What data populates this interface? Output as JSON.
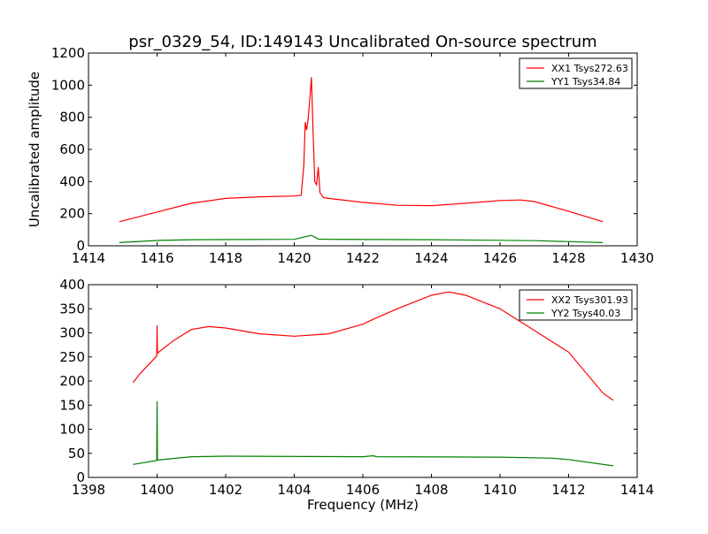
{
  "chart_data": [
    {
      "type": "line",
      "title": "psr_0329_54, ID:149143 Uncalibrated On-source spectrum",
      "xlabel": "",
      "ylabel": "Uncalibrated amplitude",
      "xlim": [
        1414,
        1430
      ],
      "ylim": [
        0,
        1200
      ],
      "xticks": [
        1414,
        1416,
        1418,
        1420,
        1422,
        1424,
        1426,
        1428,
        1430
      ],
      "yticks": [
        0,
        200,
        400,
        600,
        800,
        1000,
        1200
      ],
      "legend": "top-right",
      "series": [
        {
          "name": "XX1 Tsys272.63",
          "color": "#ff0000",
          "x": [
            1414.9,
            1415,
            1416,
            1417,
            1418,
            1419,
            1420,
            1420.2,
            1420.28,
            1420.32,
            1420.36,
            1420.4,
            1420.45,
            1420.5,
            1420.55,
            1420.6,
            1420.65,
            1420.7,
            1420.75,
            1420.85,
            1421,
            1422,
            1423,
            1424,
            1425,
            1426,
            1426.6,
            1427,
            1428,
            1429
          ],
          "y": [
            150,
            155,
            210,
            265,
            295,
            305,
            310,
            315,
            500,
            770,
            720,
            780,
            900,
            1050,
            700,
            400,
            380,
            490,
            330,
            300,
            295,
            270,
            252,
            250,
            265,
            282,
            285,
            275,
            215,
            150
          ]
        },
        {
          "name": "YY1 Tsys34.84",
          "color": "#008000",
          "x": [
            1414.9,
            1416,
            1417,
            1420,
            1420.3,
            1420.5,
            1420.7,
            1421,
            1424,
            1427,
            1429
          ],
          "y": [
            20,
            33,
            38,
            40,
            55,
            65,
            42,
            40,
            38,
            32,
            20
          ]
        }
      ]
    },
    {
      "type": "line",
      "title": "",
      "xlabel": "Frequency (MHz)",
      "ylabel": "",
      "xlim": [
        1398,
        1414
      ],
      "ylim": [
        0,
        400
      ],
      "xticks": [
        1398,
        1400,
        1402,
        1404,
        1406,
        1408,
        1410,
        1412,
        1414
      ],
      "yticks": [
        0,
        50,
        100,
        150,
        200,
        250,
        300,
        350,
        400
      ],
      "legend": "top-right",
      "series": [
        {
          "name": "XX2 Tsys301.93",
          "color": "#ff0000",
          "x": [
            1399.3,
            1399.5,
            1399.99,
            1400,
            1400.01,
            1400.5,
            1401,
            1401.5,
            1402,
            1403,
            1404,
            1405,
            1406,
            1406.3,
            1407,
            1408,
            1408.5,
            1409,
            1410,
            1411,
            1412,
            1413,
            1413.3
          ],
          "y": [
            197,
            215,
            252,
            315,
            258,
            285,
            307,
            313,
            310,
            298,
            293,
            298,
            318,
            328,
            350,
            378,
            385,
            378,
            350,
            305,
            260,
            175,
            160
          ]
        },
        {
          "name": "YY2 Tsys40.03",
          "color": "#008000",
          "x": [
            1399.3,
            1399.99,
            1400,
            1400.01,
            1401,
            1402,
            1406,
            1406.3,
            1406.4,
            1410,
            1411.5,
            1412,
            1413.3
          ],
          "y": [
            27,
            35,
            158,
            36,
            43,
            44,
            43,
            45,
            43,
            42,
            40,
            37,
            24
          ]
        }
      ]
    }
  ]
}
